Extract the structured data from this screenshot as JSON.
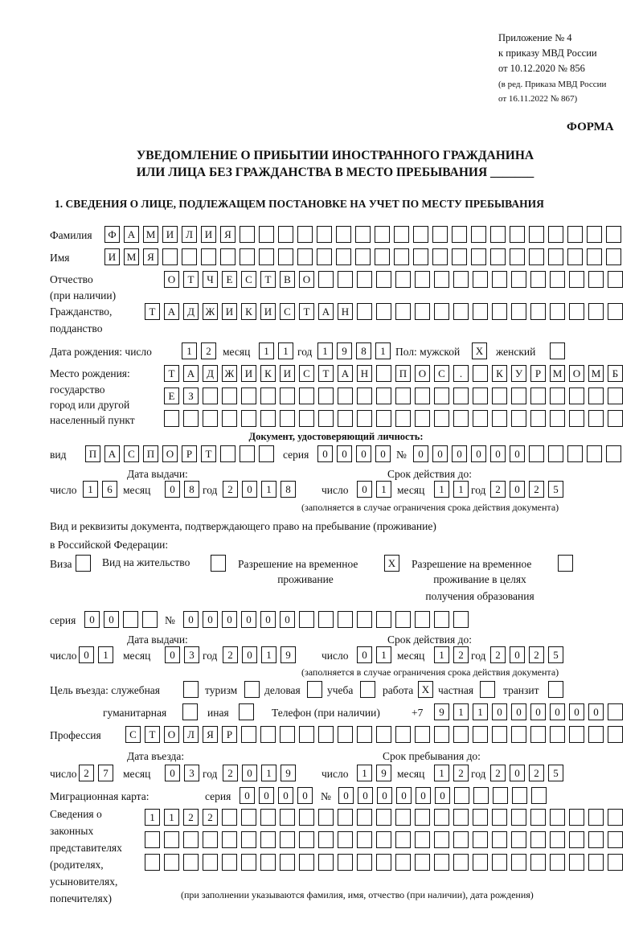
{
  "header": {
    "appendix": [
      "Приложение № 4",
      "к приказу МВД России",
      "от 10.12.2020 № 856"
    ],
    "revision": [
      "(в ред. Приказа МВД России",
      "от 16.11.2022 № 867)"
    ],
    "form_label": "ФОРМА",
    "title": [
      "УВЕДОМЛЕНИЕ О ПРИБЫТИИ ИНОСТРАННОГО ГРАЖДАНИНА",
      "ИЛИ ЛИЦА БЕЗ ГРАЖДАНСТВА В МЕСТО ПРЕБЫВАНИЯ _______"
    ],
    "section1": "1. СВЕДЕНИЯ О ЛИЦЕ, ПОДЛЕЖАЩЕМ ПОСТАНОВКЕ НА УЧЕТ ПО МЕСТУ ПРЕБЫВАНИЯ"
  },
  "labels": {
    "surname": "Фамилия",
    "name": "Имя",
    "patronymic": [
      "Отчество",
      "(при наличии)"
    ],
    "citizenship": [
      "Гражданство,",
      "подданство"
    ],
    "birth_date": "Дата рождения:  число",
    "month": "месяц",
    "year": "год",
    "day": "число",
    "sex_male": "Пол: мужской",
    "sex_female": "женский",
    "birth_place": [
      "Место рождения:",
      "государство",
      "город или другой",
      "населенный пункт"
    ],
    "id_doc": "Документ, удостоверяющий личность:",
    "kind": "вид",
    "series": "серия",
    "number": "№",
    "issue_date": "Дата выдачи:",
    "valid_until": "Срок действия до:",
    "valid_note": "(заполняется в случае ограничения срока действия документа)",
    "stay_doc": [
      "Вид и реквизиты документа, подтверждающего право на пребывание (проживание)",
      "в Российской Федерации:"
    ],
    "visa": "Виза",
    "residence": "Вид на жительство",
    "temp_residence": [
      "Разрешение на временное",
      "проживание"
    ],
    "temp_residence_edu": [
      "Разрешение на временное",
      "проживание в целях",
      "получения образования"
    ],
    "purpose": "Цель въезда: служебная",
    "tourism": "туризм",
    "business": "деловая",
    "study": "учеба",
    "work": "работа",
    "private": "частная",
    "transit": "транзит",
    "humanitarian": "гуманитарная",
    "other": "иная",
    "phone": "Телефон (при наличии)",
    "phone_prefix": "+7",
    "profession": "Профессия",
    "entry_date": "Дата въезда:",
    "stay_until": "Срок пребывания до:",
    "migration_card": "Миграционная карта:",
    "representatives": [
      "Сведения о",
      "законных",
      "представителях",
      "(родителях,",
      "усыновителях,",
      "попечителях)"
    ],
    "rep_note": "(при заполнении указываются фамилия, имя, отчество (при наличии), дата рождения)"
  },
  "fields": {
    "surname": "ФАМИЛИЯ",
    "name": "ИМЯ",
    "patronymic": "ОТЧЕСТВО",
    "citizenship": "ТАДЖИКИСТАН",
    "birth_day": "12",
    "birth_month": "11",
    "birth_year": "1981",
    "sex_male": "X",
    "sex_female": "",
    "birth_place": [
      "ТАДЖИКИСТАН ПОС. КУРМОМБ",
      "ЕЗ",
      ""
    ],
    "id_kind": "ПАСПОРТ",
    "id_series": "0000",
    "id_number": "000000",
    "id_issue": {
      "day": "16",
      "month": "08",
      "year": "2018"
    },
    "id_valid": {
      "day": "01",
      "month": "11",
      "year": "2025"
    },
    "visa": "",
    "residence": "",
    "temp_residence": "X",
    "temp_residence_edu": "",
    "stay_series": "00",
    "stay_number": "000000",
    "stay_issue": {
      "day": "01",
      "month": "03",
      "year": "2019"
    },
    "stay_valid": {
      "day": "01",
      "month": "12",
      "year": "2025"
    },
    "purpose": {
      "official": "",
      "tourism": "",
      "business": "",
      "study": "",
      "work": "X",
      "private": "",
      "transit": "",
      "humanitarian": "",
      "other": ""
    },
    "phone": "911000000",
    "profession": "СТОЛЯР",
    "entry": {
      "day": "27",
      "month": "03",
      "year": "2019"
    },
    "stay_until": {
      "day": "19",
      "month": "12",
      "year": "2025"
    },
    "mc_series": "0000",
    "mc_number": "000000",
    "representatives": [
      "1122",
      "",
      ""
    ]
  }
}
